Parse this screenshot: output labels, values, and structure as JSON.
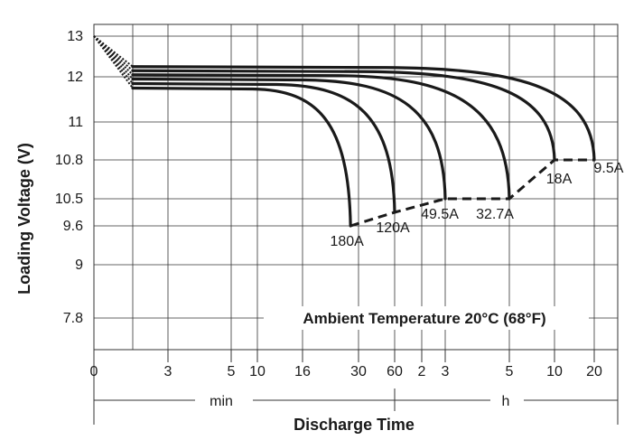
{
  "chart_data": {
    "type": "line",
    "xlabel": "Discharge Time",
    "ylabel": "Loading Voltage (V)",
    "x_units": [
      {
        "label": "min",
        "ticks": [
          "0",
          "3",
          "5",
          "10",
          "16",
          "30",
          "60"
        ]
      },
      {
        "label": "h",
        "ticks": [
          "2",
          "3",
          "5",
          "10",
          "20"
        ]
      }
    ],
    "x_ticks": [
      {
        "label": "0",
        "time_min": 0
      },
      {
        "label": "3",
        "time_min": 3
      },
      {
        "label": "5",
        "time_min": 5
      },
      {
        "label": "10",
        "time_min": 10
      },
      {
        "label": "16",
        "time_min": 16
      },
      {
        "label": "30",
        "time_min": 30
      },
      {
        "label": "60",
        "time_min": 60
      },
      {
        "label": "2",
        "time_min": 120
      },
      {
        "label": "3",
        "time_min": 180
      },
      {
        "label": "5",
        "time_min": 300
      },
      {
        "label": "10",
        "time_min": 600
      },
      {
        "label": "20",
        "time_min": 1200
      }
    ],
    "y_ticks": [
      "13",
      "12",
      "11",
      "10.8",
      "10.5",
      "9.6",
      "9",
      "7.8"
    ],
    "annotation": "Ambient Temperature 20°C (68°F)",
    "series": [
      {
        "name": "180A",
        "end_time_min": 28,
        "end_voltage": 9.6,
        "plateau_voltage": 11.75
      },
      {
        "name": "120A",
        "end_time_min": 60,
        "end_voltage": 10.05,
        "plateau_voltage": 11.85
      },
      {
        "name": "49.5A",
        "end_time_min": 180,
        "end_voltage": 10.5,
        "plateau_voltage": 11.95
      },
      {
        "name": "32.7A",
        "end_time_min": 300,
        "end_voltage": 10.5,
        "plateau_voltage": 12.05
      },
      {
        "name": "18A",
        "end_time_min": 600,
        "end_voltage": 10.8,
        "plateau_voltage": 12.15
      },
      {
        "name": "9.5A",
        "end_time_min": 1200,
        "end_voltage": 10.8,
        "plateau_voltage": 12.25
      }
    ],
    "final_voltage_line": [
      {
        "time_min": 28,
        "voltage": 9.6
      },
      {
        "time_min": 60,
        "voltage": 10.05
      },
      {
        "time_min": 180,
        "voltage": 10.5
      },
      {
        "time_min": 300,
        "voltage": 10.5
      },
      {
        "time_min": 600,
        "voltage": 10.8
      },
      {
        "time_min": 1200,
        "voltage": 10.8
      }
    ],
    "grid": true,
    "colors": {
      "line": "#1a1a1a",
      "grid": "#333333",
      "background": "#ffffff"
    }
  }
}
